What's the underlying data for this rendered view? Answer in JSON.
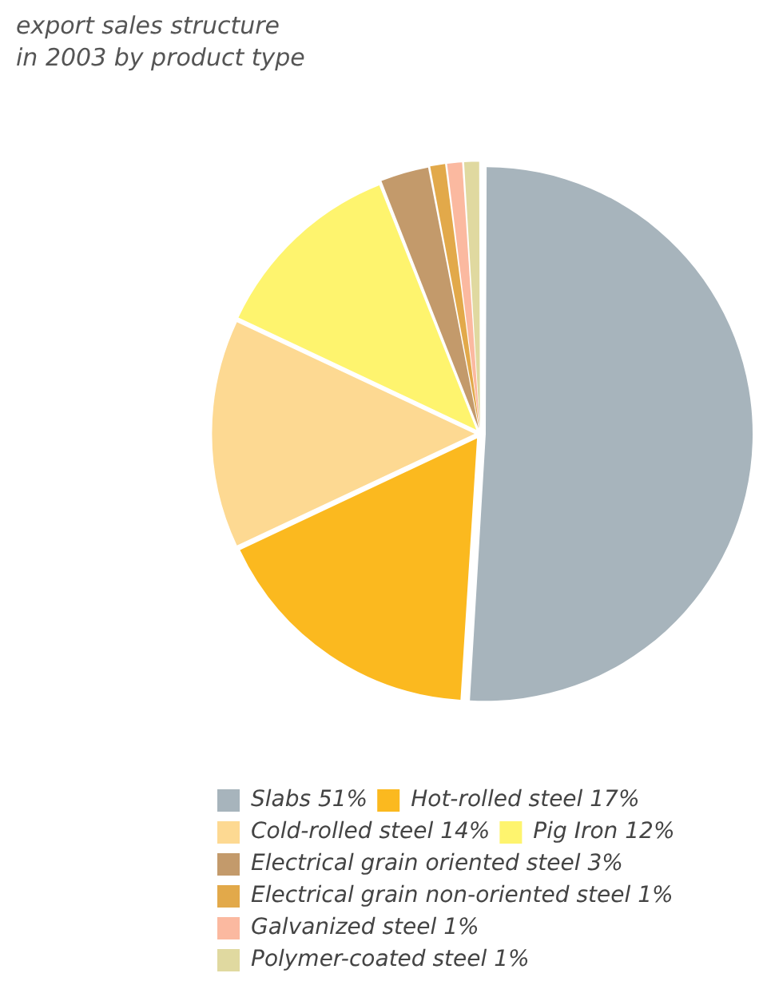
{
  "chart_data": {
    "type": "pie",
    "title": "export sales structure\nin 2003 by product type",
    "categories": [
      "Slabs 51%",
      "Hot-rolled steel 17%",
      "Cold-rolled steel 14%",
      "Pig Iron 12%",
      "Electrical grain oriented steel 3%",
      "Electrical grain non-oriented steel 1%",
      "Galvanized steel 1%",
      "Polymer-coated steel 1%"
    ],
    "values": [
      51,
      17,
      14,
      12,
      3,
      1,
      1,
      1
    ],
    "colors": [
      "#a7b4bc",
      "#fbb91f",
      "#fdd992",
      "#fef46e",
      "#c39a6b",
      "#e2a94a",
      "#fbb9a0",
      "#e0d9a0"
    ],
    "legend": "bottom left"
  }
}
